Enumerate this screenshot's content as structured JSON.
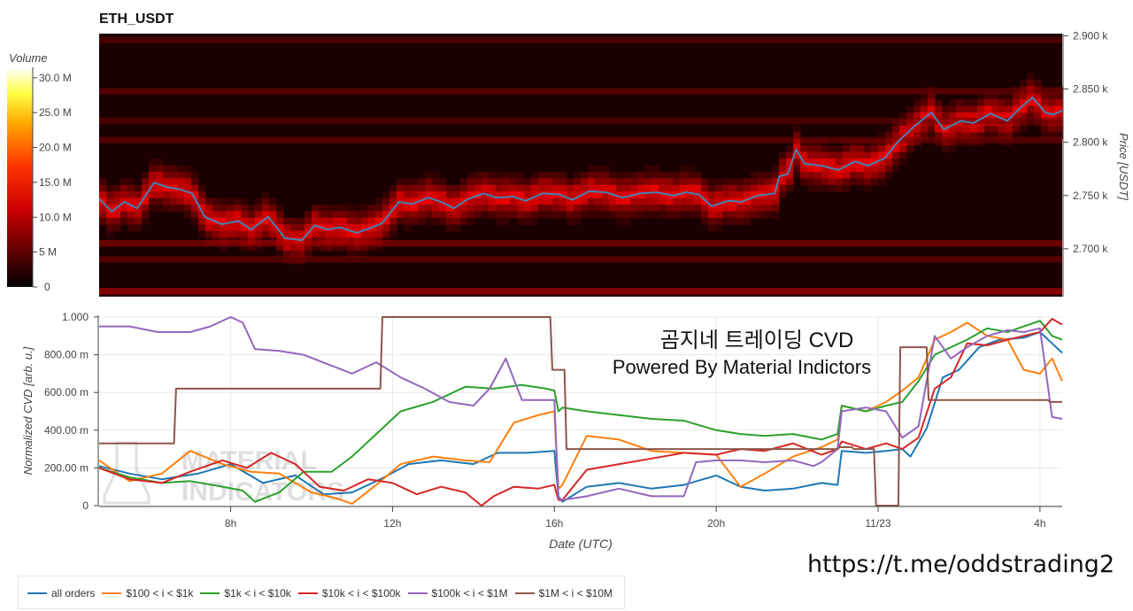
{
  "colors": {
    "price_line": "#4682b4",
    "heat_low": "#000000",
    "heat_mid": "#ff0000",
    "heat_high": "#ffffff",
    "grid": "#e9e9e9"
  },
  "watermark": [
    "MATERIAL",
    "INDICATORS"
  ],
  "url_text": "https://t.me/oddstrading2",
  "chart_data": [
    {
      "type": "heatmap",
      "title": "ETH_USDT",
      "colorbar_title": "Volume",
      "colorbar_ticks": [
        "30.0 M",
        "25.0 M",
        "20.0 M",
        "15.0 M",
        "10.0 M",
        "5 M",
        "0"
      ],
      "ylabel": "Price [USDT]",
      "y_ticks": [
        "2.900 k",
        "2.850 k",
        "2.800 k",
        "2.750 k",
        "2.700 k"
      ],
      "y_tick_values": [
        2900,
        2850,
        2800,
        2750,
        2700
      ],
      "ylim": [
        2655,
        2902
      ],
      "xlim": [
        5.9,
        28.7
      ],
      "price_series": {
        "name": "Price",
        "x": [
          5.9,
          6.2,
          6.5,
          6.8,
          7.2,
          7.5,
          7.8,
          8.1,
          8.4,
          8.8,
          9.2,
          9.5,
          9.9,
          10.3,
          10.7,
          11.0,
          11.3,
          11.6,
          12.0,
          12.3,
          12.6,
          13.0,
          13.3,
          13.7,
          14.0,
          14.3,
          14.6,
          15.0,
          15.3,
          15.7,
          16.0,
          16.4,
          16.8,
          17.1,
          17.5,
          17.9,
          18.3,
          18.7,
          19.1,
          19.5,
          19.8,
          20.1,
          20.4,
          20.8,
          21.1,
          21.5,
          21.9,
          22.0,
          22.2,
          22.4,
          22.6,
          23.0,
          23.4,
          23.8,
          24.1,
          24.5,
          24.8,
          25.2,
          25.6,
          25.9,
          26.3,
          26.6,
          27.0,
          27.4,
          27.7,
          28.0,
          28.3,
          28.5,
          28.7
        ],
        "y": [
          2747,
          2735,
          2744,
          2738,
          2762,
          2758,
          2756,
          2752,
          2730,
          2723,
          2726,
          2718,
          2730,
          2710,
          2708,
          2722,
          2718,
          2720,
          2715,
          2719,
          2724,
          2744,
          2742,
          2748,
          2744,
          2738,
          2746,
          2752,
          2748,
          2749,
          2745,
          2752,
          2751,
          2746,
          2754,
          2753,
          2748,
          2752,
          2753,
          2750,
          2753,
          2751,
          2740,
          2745,
          2744,
          2750,
          2752,
          2768,
          2770,
          2793,
          2780,
          2778,
          2774,
          2782,
          2778,
          2785,
          2800,
          2815,
          2828,
          2812,
          2820,
          2818,
          2827,
          2820,
          2832,
          2842,
          2828,
          2826,
          2830
        ]
      },
      "volume_bands": [
        {
          "price": 2896,
          "intensity": 0.25
        },
        {
          "price": 2848,
          "intensity": 0.3
        },
        {
          "price": 2820,
          "intensity": 0.25
        },
        {
          "price": 2802,
          "intensity": 0.3
        },
        {
          "price": 2705,
          "intensity": 0.45
        },
        {
          "price": 2690,
          "intensity": 0.3
        },
        {
          "price": 2660,
          "intensity": 0.6
        }
      ]
    },
    {
      "type": "line",
      "title": "",
      "xlabel": "Date (UTC)",
      "ylabel": "Normalized CVD [arb. u.]",
      "x_ticks": [
        "8h",
        "12h",
        "16h",
        "20h",
        "11/23",
        "4h"
      ],
      "x_tick_values": [
        8,
        12,
        16,
        20,
        24,
        28
      ],
      "y_ticks": [
        "1.000",
        "800.00 m",
        "600.00 m",
        "400.00 m",
        "200.00 m",
        "0"
      ],
      "y_tick_values": [
        1.0,
        0.8,
        0.6,
        0.4,
        0.2,
        0.0
      ],
      "ylim": [
        0,
        1.0
      ],
      "xlim": [
        4.75,
        28.55
      ],
      "annotation": [
        "곰지네 트레이딩 CVD",
        "Powered By Material Indictors"
      ],
      "series": [
        {
          "name": "all orders",
          "color": "#1f77b4",
          "x": [
            4.75,
            5.5,
            6.3,
            7.2,
            8.0,
            8.8,
            9.6,
            10.3,
            11.0,
            11.7,
            12.4,
            13.2,
            14.0,
            14.6,
            15.3,
            16.0,
            16.1,
            16.2,
            16.8,
            17.6,
            18.4,
            19.2,
            20.0,
            20.6,
            21.2,
            21.9,
            22.6,
            23.0,
            23.1,
            23.7,
            24.2,
            24.6,
            24.8,
            25.2,
            25.6,
            26.0,
            26.5,
            27.0,
            27.6,
            28.0,
            28.3,
            28.55
          ],
          "y": [
            0.21,
            0.17,
            0.14,
            0.17,
            0.22,
            0.12,
            0.16,
            0.06,
            0.07,
            0.14,
            0.22,
            0.24,
            0.22,
            0.28,
            0.28,
            0.29,
            0.05,
            0.02,
            0.1,
            0.12,
            0.09,
            0.11,
            0.16,
            0.1,
            0.08,
            0.09,
            0.12,
            0.11,
            0.29,
            0.28,
            0.29,
            0.3,
            0.26,
            0.41,
            0.68,
            0.72,
            0.84,
            0.88,
            0.89,
            0.92,
            0.86,
            0.81
          ]
        },
        {
          "name": "$100 < i < $1k",
          "color": "#ff7f0e",
          "x": [
            4.75,
            5.5,
            6.3,
            7.0,
            7.8,
            8.5,
            9.2,
            10.0,
            10.6,
            11.0,
            11.6,
            12.2,
            13.0,
            13.8,
            14.4,
            15.0,
            15.6,
            16.0,
            16.1,
            16.2,
            16.8,
            17.6,
            18.4,
            19.2,
            20.0,
            20.6,
            21.2,
            21.9,
            22.6,
            23.0,
            23.1,
            23.7,
            24.2,
            24.6,
            25.0,
            25.4,
            25.8,
            26.2,
            26.7,
            27.2,
            27.6,
            28.0,
            28.3,
            28.55
          ],
          "y": [
            0.24,
            0.13,
            0.17,
            0.29,
            0.22,
            0.18,
            0.17,
            0.07,
            0.04,
            0.01,
            0.11,
            0.22,
            0.26,
            0.24,
            0.23,
            0.44,
            0.48,
            0.5,
            0.09,
            0.11,
            0.37,
            0.35,
            0.29,
            0.28,
            0.27,
            0.1,
            0.17,
            0.26,
            0.31,
            0.35,
            0.53,
            0.5,
            0.55,
            0.61,
            0.68,
            0.88,
            0.92,
            0.97,
            0.9,
            0.88,
            0.72,
            0.7,
            0.78,
            0.66
          ]
        },
        {
          "name": "$1k < i < $10k",
          "color": "#2ca02c",
          "x": [
            4.75,
            5.5,
            6.3,
            7.0,
            7.8,
            8.3,
            8.6,
            9.2,
            9.8,
            10.5,
            11.0,
            11.6,
            12.2,
            13.0,
            13.8,
            14.5,
            15.2,
            15.8,
            16.0,
            16.1,
            16.2,
            16.8,
            17.6,
            18.4,
            19.2,
            20.0,
            20.6,
            21.2,
            21.9,
            22.6,
            23.0,
            23.1,
            23.7,
            24.2,
            24.6,
            25.0,
            25.4,
            25.8,
            26.2,
            26.7,
            27.2,
            27.6,
            28.0,
            28.3,
            28.55
          ],
          "y": [
            0.2,
            0.15,
            0.12,
            0.13,
            0.1,
            0.08,
            0.02,
            0.07,
            0.18,
            0.18,
            0.26,
            0.38,
            0.5,
            0.55,
            0.63,
            0.62,
            0.64,
            0.62,
            0.61,
            0.5,
            0.52,
            0.5,
            0.48,
            0.46,
            0.45,
            0.4,
            0.38,
            0.37,
            0.38,
            0.35,
            0.38,
            0.53,
            0.5,
            0.53,
            0.55,
            0.66,
            0.8,
            0.84,
            0.88,
            0.94,
            0.92,
            0.95,
            0.98,
            0.9,
            0.88
          ]
        },
        {
          "name": "$10k < i < $100k",
          "color": "#d62728",
          "x": [
            4.75,
            5.5,
            6.3,
            7.0,
            7.8,
            8.4,
            9.0,
            9.6,
            10.2,
            10.8,
            11.4,
            12.0,
            12.6,
            13.2,
            13.8,
            14.2,
            14.5,
            15.0,
            15.6,
            16.0,
            16.1,
            16.2,
            16.8,
            17.6,
            18.4,
            19.2,
            20.0,
            20.6,
            21.2,
            21.9,
            22.6,
            23.0,
            23.1,
            23.7,
            24.2,
            24.6,
            25.0,
            25.4,
            25.8,
            26.2,
            26.7,
            27.2,
            27.6,
            28.0,
            28.3,
            28.55
          ],
          "y": [
            0.2,
            0.14,
            0.12,
            0.18,
            0.24,
            0.2,
            0.28,
            0.22,
            0.1,
            0.08,
            0.14,
            0.12,
            0.06,
            0.1,
            0.07,
            0.0,
            0.05,
            0.1,
            0.09,
            0.11,
            0.03,
            0.03,
            0.19,
            0.22,
            0.25,
            0.28,
            0.27,
            0.3,
            0.29,
            0.33,
            0.27,
            0.3,
            0.34,
            0.3,
            0.33,
            0.3,
            0.36,
            0.62,
            0.68,
            0.86,
            0.85,
            0.88,
            0.9,
            0.92,
            0.99,
            0.96
          ]
        },
        {
          "name": "$100k < i < $1M",
          "color": "#9467bd",
          "x": [
            4.75,
            5.5,
            6.2,
            7.0,
            7.5,
            8.0,
            8.3,
            8.6,
            9.2,
            9.8,
            10.4,
            11.0,
            11.6,
            12.2,
            12.8,
            13.4,
            14.0,
            14.4,
            14.8,
            15.2,
            15.8,
            16.0,
            16.1,
            16.2,
            16.8,
            17.6,
            18.4,
            19.2,
            19.5,
            20.0,
            20.6,
            21.2,
            21.9,
            22.4,
            22.6,
            23.0,
            23.1,
            23.7,
            24.2,
            24.6,
            25.0,
            25.4,
            25.8,
            26.2,
            26.7,
            27.2,
            27.6,
            28.0,
            28.3,
            28.55
          ],
          "y": [
            0.95,
            0.95,
            0.92,
            0.92,
            0.95,
            1.0,
            0.97,
            0.83,
            0.82,
            0.8,
            0.75,
            0.7,
            0.76,
            0.68,
            0.62,
            0.55,
            0.53,
            0.62,
            0.78,
            0.56,
            0.56,
            0.56,
            0.04,
            0.03,
            0.05,
            0.09,
            0.05,
            0.05,
            0.23,
            0.24,
            0.24,
            0.23,
            0.24,
            0.21,
            0.23,
            0.3,
            0.5,
            0.52,
            0.5,
            0.36,
            0.42,
            0.9,
            0.78,
            0.84,
            0.9,
            0.93,
            0.92,
            0.94,
            0.47,
            0.46
          ]
        },
        {
          "name": "$1M < i < $10M",
          "color": "#8c564b",
          "x": [
            4.75,
            6.6,
            6.65,
            11.7,
            11.75,
            15.9,
            15.95,
            16.25,
            16.3,
            23.0,
            23.05,
            23.35,
            23.4,
            23.9,
            23.95,
            24.5,
            24.55,
            25.2,
            25.25,
            27.6,
            27.65,
            28.2,
            28.25,
            28.55
          ],
          "y": [
            0.33,
            0.33,
            0.62,
            0.62,
            1.0,
            1.0,
            0.72,
            0.72,
            0.3,
            0.3,
            0.31,
            0.31,
            0.3,
            0.3,
            0.0,
            0.0,
            0.84,
            0.84,
            0.56,
            0.56,
            0.56,
            0.56,
            0.55,
            0.55
          ]
        }
      ]
    }
  ]
}
